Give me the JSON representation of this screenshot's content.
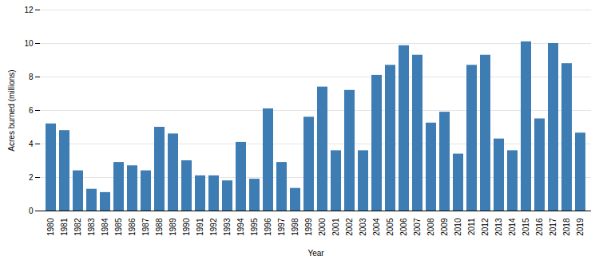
{
  "chart_data": {
    "type": "bar",
    "categories": [
      "1980",
      "1981",
      "1982",
      "1983",
      "1984",
      "1985",
      "1986",
      "1987",
      "1988",
      "1989",
      "1990",
      "1991",
      "1992",
      "1993",
      "1994",
      "1995",
      "1996",
      "1997",
      "1998",
      "1999",
      "2000",
      "2001",
      "2002",
      "2003",
      "2004",
      "2005",
      "2006",
      "2007",
      "2008",
      "2009",
      "2010",
      "2011",
      "2012",
      "2013",
      "2014",
      "2015",
      "2016",
      "2017",
      "2018",
      "2019"
    ],
    "values": [
      5.2,
      4.8,
      2.4,
      1.3,
      1.1,
      2.9,
      2.7,
      2.4,
      5.0,
      4.6,
      3.0,
      2.1,
      2.1,
      1.8,
      4.1,
      1.9,
      6.1,
      2.9,
      1.35,
      5.6,
      7.4,
      3.6,
      7.2,
      3.6,
      8.1,
      8.7,
      9.87,
      9.3,
      5.25,
      5.9,
      3.4,
      8.7,
      9.3,
      4.3,
      3.6,
      10.1,
      5.5,
      10.0,
      8.8,
      4.65
    ],
    "color": "#3d7db3",
    "xlabel": "Year",
    "ylabel": "Acres burned (millions)",
    "ylim": [
      0,
      12
    ],
    "yticks": [
      0,
      2,
      4,
      6,
      8,
      10,
      12
    ],
    "grid": true
  }
}
